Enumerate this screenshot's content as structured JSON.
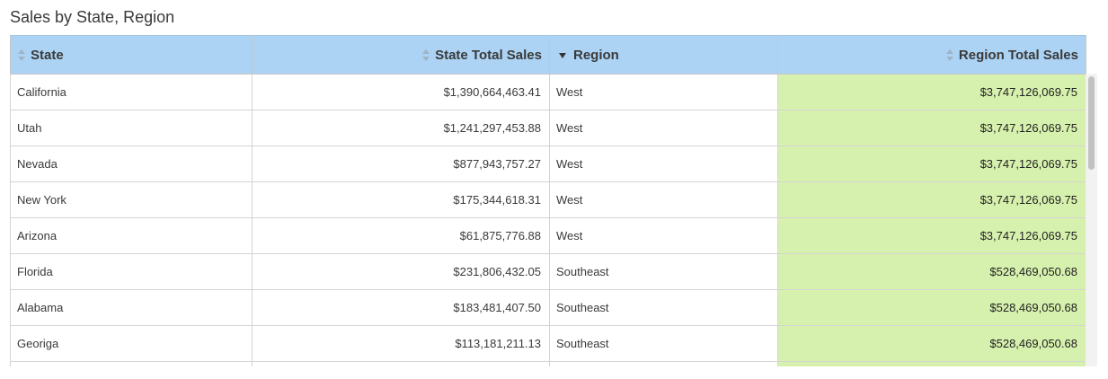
{
  "title": "Sales by State, Region",
  "columns": [
    "State",
    "State Total Sales",
    "Region",
    "Region Total Sales"
  ],
  "rows": [
    {
      "state": "California",
      "state_total": "$1,390,664,463.41",
      "region": "West",
      "region_total": "$3,747,126,069.75"
    },
    {
      "state": "Utah",
      "state_total": "$1,241,297,453.88",
      "region": "West",
      "region_total": "$3,747,126,069.75"
    },
    {
      "state": "Nevada",
      "state_total": "$877,943,757.27",
      "region": "West",
      "region_total": "$3,747,126,069.75"
    },
    {
      "state": "New York",
      "state_total": "$175,344,618.31",
      "region": "West",
      "region_total": "$3,747,126,069.75"
    },
    {
      "state": "Arizona",
      "state_total": "$61,875,776.88",
      "region": "West",
      "region_total": "$3,747,126,069.75"
    },
    {
      "state": "Florida",
      "state_total": "$231,806,432.05",
      "region": "Southeast",
      "region_total": "$528,469,050.68"
    },
    {
      "state": "Alabama",
      "state_total": "$183,481,407.50",
      "region": "Southeast",
      "region_total": "$528,469,050.68"
    },
    {
      "state": "Georiga",
      "state_total": "$113,181,211.13",
      "region": "Southeast",
      "region_total": "$528,469,050.68"
    },
    {
      "state": "",
      "state_total": "",
      "region": "",
      "region_total": ""
    }
  ],
  "colors": {
    "header_bg": "#acd3f4",
    "highlight_col_bg": "#d6f1ad"
  },
  "icons": {
    "sortable": "sort-up-down-icon",
    "sorted_desc": "sort-descending-icon"
  }
}
